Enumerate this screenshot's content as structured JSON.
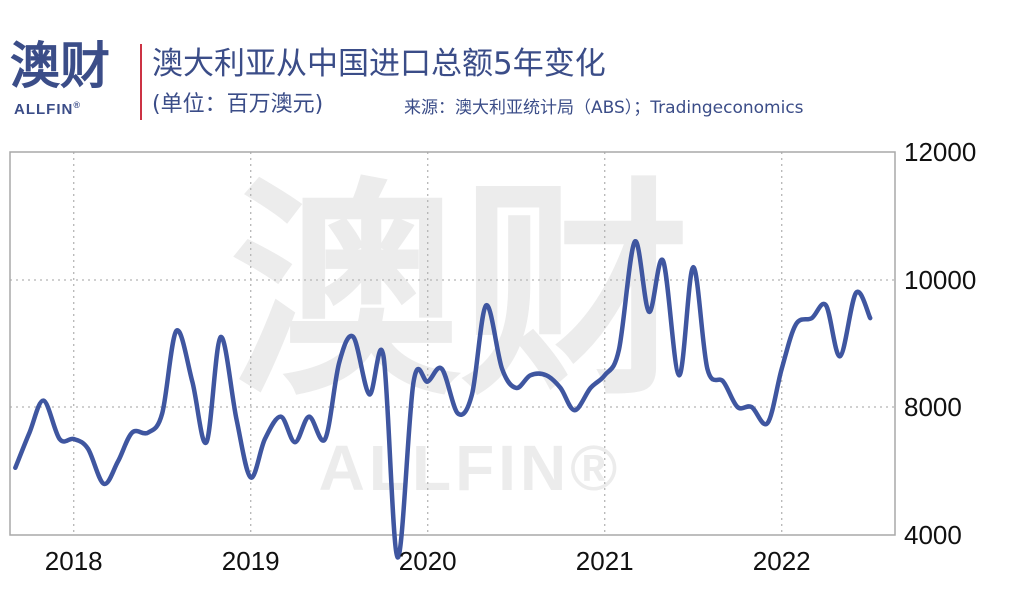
{
  "brand": {
    "logo_cn": "澳财",
    "logo_en": "ALLFIN",
    "logo_mark": "®"
  },
  "header": {
    "title": "澳大利亚从中国进口总额5年变化",
    "unit": "(单位：百万澳元)",
    "source": "来源：澳大利亚统计局（ABS）；Tradingeconomics"
  },
  "colors": {
    "line": "#3f56a0",
    "brand": "#3b4d88",
    "accent": "#cc3344",
    "grid": "#b5b5b5",
    "watermark": "#ececec"
  },
  "chart_data": {
    "type": "line",
    "title": "澳大利亚从中国进口总额5年变化",
    "ylabel": "",
    "xlabel": "",
    "y_axis_side": "right",
    "grid": true,
    "legend": "none",
    "ylim": [
      4000,
      12000
    ],
    "yticks": [
      "12000",
      "10000",
      "8000",
      "4000"
    ],
    "ytick_values": [
      12000,
      10000,
      8000,
      4000
    ],
    "xticks": [
      "2018",
      "2019",
      "2020",
      "2021",
      "2022"
    ],
    "xtick_values": [
      2018.0,
      2019.0,
      2020.0,
      2021.0,
      2022.0
    ],
    "xlim": [
      2017.64,
      2022.64
    ],
    "series": [
      {
        "x": [
          2017.67,
          2017.75,
          2017.83,
          2017.92,
          2018.0,
          2018.08,
          2018.17,
          2018.25,
          2018.33,
          2018.42,
          2018.5,
          2018.58,
          2018.67,
          2018.75,
          2018.83,
          2018.92,
          2019.0,
          2019.08,
          2019.17,
          2019.25,
          2019.33,
          2019.42,
          2019.5,
          2019.58,
          2019.67,
          2019.75,
          2019.83,
          2019.92,
          2020.0,
          2020.08,
          2020.17,
          2020.25,
          2020.33,
          2020.42,
          2020.5,
          2020.58,
          2020.67,
          2020.75,
          2020.83,
          2020.92,
          2021.0,
          2021.08,
          2021.17,
          2021.25,
          2021.33,
          2021.42,
          2021.5,
          2021.58,
          2021.67,
          2021.75,
          2021.83,
          2021.92,
          2022.0,
          2022.08,
          2022.17,
          2022.25,
          2022.33,
          2022.42,
          2022.5
        ],
        "values": [
          6100,
          7200,
          8100,
          7000,
          7000,
          6700,
          5600,
          6300,
          7200,
          7200,
          7800,
          9200,
          8400,
          6900,
          9100,
          7600,
          5800,
          7000,
          7700,
          6900,
          7700,
          7000,
          8700,
          9100,
          8200,
          8800,
          3300,
          8400,
          8400,
          8600,
          7800,
          8200,
          9600,
          8600,
          8300,
          8500,
          8500,
          8300,
          7900,
          8300,
          8500,
          8900,
          10600,
          9500,
          10300,
          8500,
          10200,
          8600,
          8400,
          8000,
          8000,
          7500,
          8600,
          9300,
          9400,
          9600,
          8800,
          9800,
          9400
        ]
      }
    ]
  }
}
